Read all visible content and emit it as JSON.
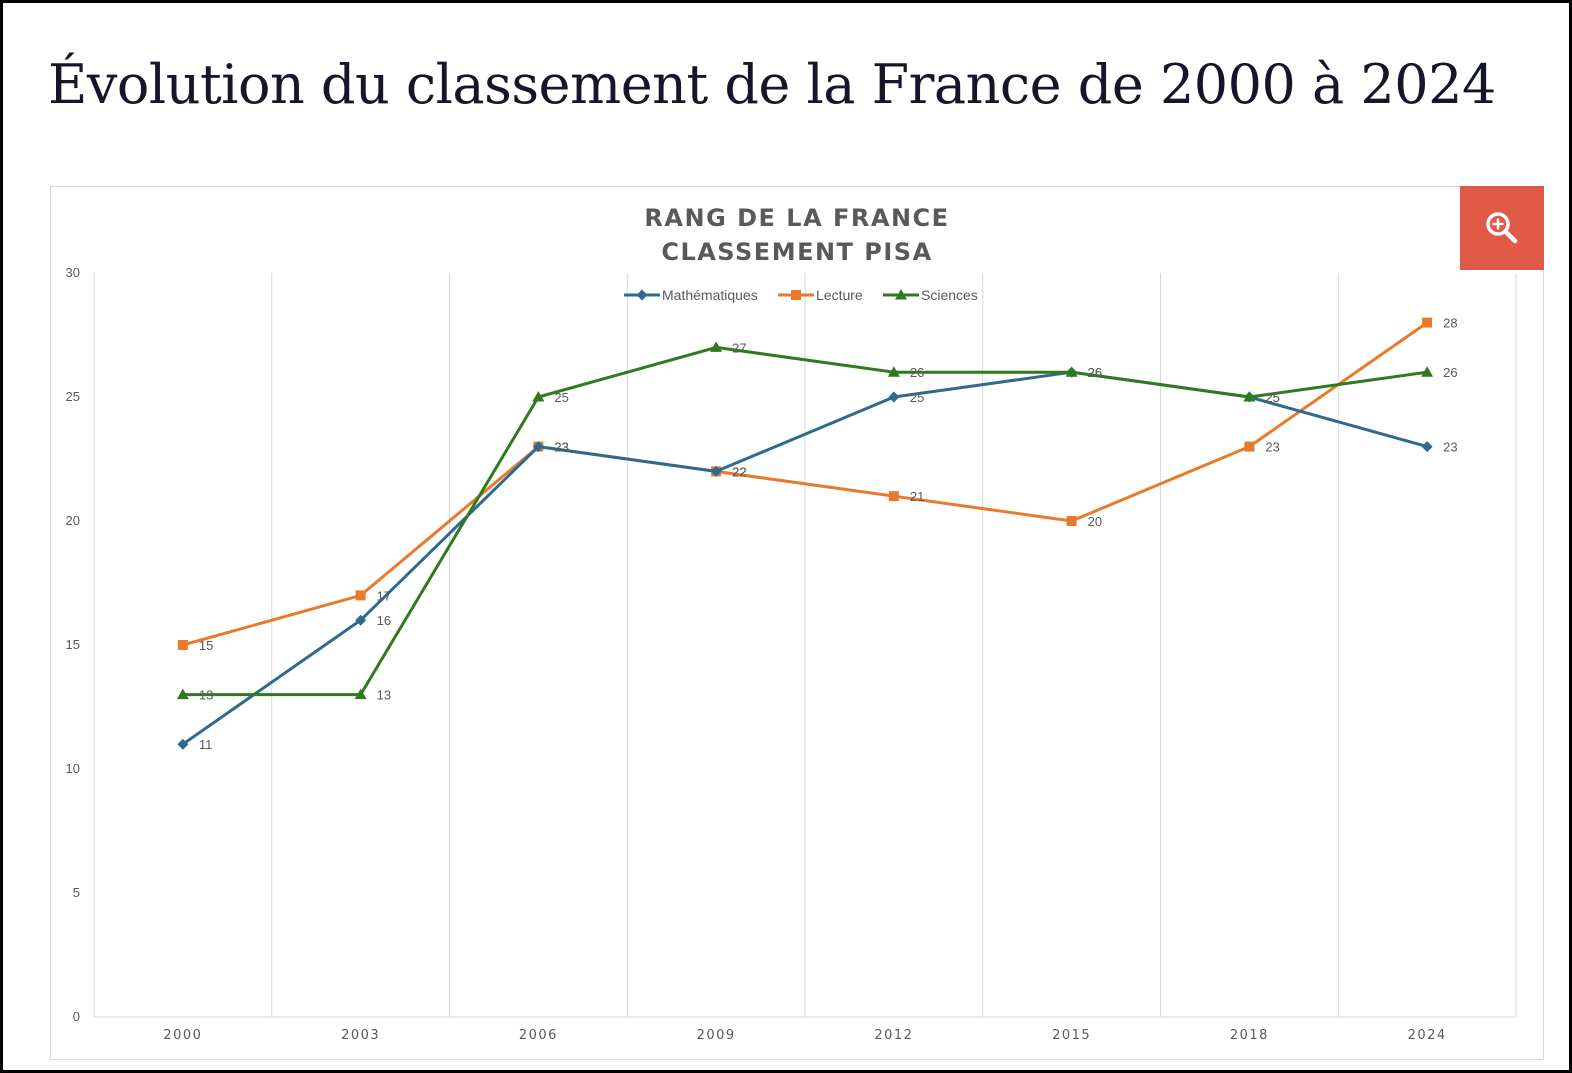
{
  "page": {
    "title": "Évolution du classement de la France de 2000 à 2024"
  },
  "zoom_button": {
    "icon": "zoom-in-icon",
    "color": "#e05a47"
  },
  "chart_data": {
    "type": "line",
    "title": "RANG DE LA FRANCE",
    "subtitle": "CLASSEMENT PISA",
    "xlabel": "",
    "ylabel": "",
    "categories": [
      "2000",
      "2003",
      "2006",
      "2009",
      "2012",
      "2015",
      "2018",
      "2024"
    ],
    "ylim": [
      0,
      30
    ],
    "yticks": [
      0,
      5,
      10,
      15,
      20,
      25,
      30
    ],
    "grid": "vertical",
    "legend": "top-center",
    "series": [
      {
        "name": "Mathématiques",
        "color": "#2e6a8e",
        "marker": "diamond",
        "values": [
          11,
          16,
          23,
          22,
          25,
          26,
          25,
          23
        ]
      },
      {
        "name": "Lecture",
        "color": "#ea7a2b",
        "marker": "square",
        "values": [
          15,
          17,
          23,
          22,
          21,
          20,
          23,
          28
        ]
      },
      {
        "name": "Sciences",
        "color": "#2f7a1f",
        "marker": "triangle",
        "values": [
          13,
          13,
          25,
          27,
          26,
          26,
          25,
          26
        ]
      }
    ]
  }
}
